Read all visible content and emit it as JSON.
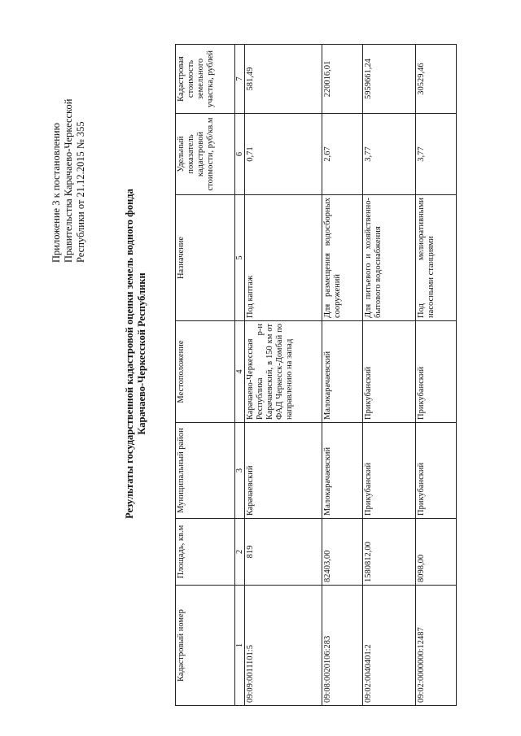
{
  "header_note": {
    "line1": "Приложение 3 к постановлению",
    "line2": "Правительства Карачаево-Черкесской",
    "line3": "Республики   от 21.12.2015  № 355"
  },
  "heading": {
    "line1": "Результаты государственной кадастровой оценки земель водного фонда",
    "line2": "Карачаево-Черкесской Республики"
  },
  "table": {
    "columns": [
      "Кадастровый номер",
      "Площадь, кв.м",
      "Муниципальный район",
      "Местоположение",
      "Назначение",
      "Удельный показатель кадастровой стоимости, руб/кв.м",
      "Кадастровая стоимость земельного участка, рублей"
    ],
    "column_numbers": [
      "1",
      "2",
      "3",
      "4",
      "5",
      "6",
      "7"
    ],
    "rows": [
      [
        "09:09:0011101:5",
        "819",
        "Карачаевский",
        "Карачаево-Черкесская Республика р-н Карачаевский, в 150 км от ФАД Черкесск-Домбай по направлению на запад",
        "Под каптаж",
        "0,71",
        "581,49"
      ],
      [
        "09:08:0020106:283",
        "82403,00",
        "Малокарачаевский",
        "Малокарачаевский",
        "Для размещения водосборных сооружений",
        "2,67",
        "220016,01"
      ],
      [
        "09:02:0040401:2",
        "1580812,00",
        "Прикубанский",
        "Прикубанский",
        "Для питьевого и хозяйственно-бытового водоснабжения",
        "3,77",
        "5959661,24"
      ],
      [
        "09:02:0000000:12487",
        "8098,00",
        "Прикубанский",
        "Прикубанский",
        "Под мелиоративными насосными станциями",
        "3,77",
        "30529,46"
      ]
    ]
  }
}
